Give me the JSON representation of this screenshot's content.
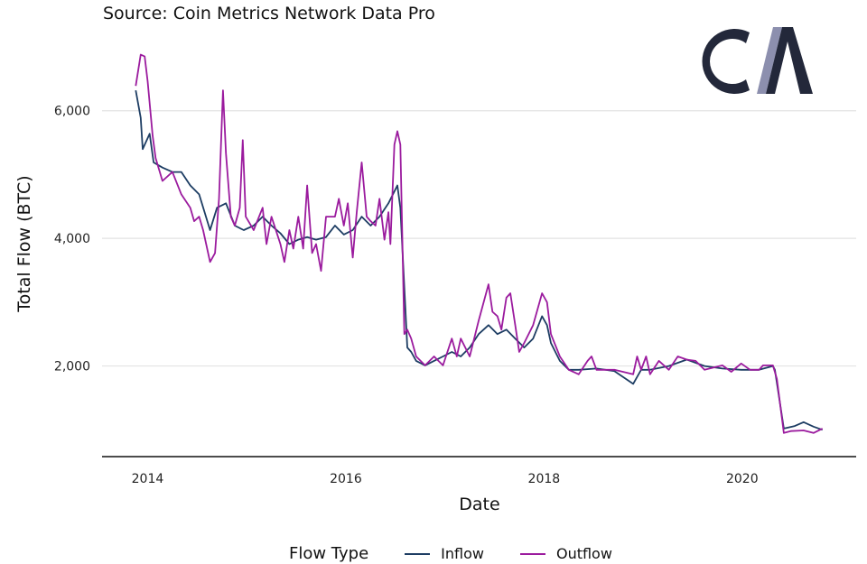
{
  "chart_data": {
    "type": "line",
    "subtitle": "Source: Coin Metrics Network Data Pro",
    "logo_text": "CM",
    "xlabel": "Date",
    "ylabel": "Total Flow (BTC)",
    "xlim": [
      2013.54,
      2021.15
    ],
    "ylim": [
      580,
      7170
    ],
    "x_ticks": [
      2014,
      2016,
      2018,
      2020
    ],
    "x_tick_labels": [
      "2014",
      "2016",
      "2018",
      "2020"
    ],
    "y_ticks": [
      2000,
      4000,
      6000
    ],
    "y_tick_labels": [
      "2,000",
      "4,000",
      "6,000"
    ],
    "grid": "horizontal",
    "legend": {
      "title": "Flow Type",
      "position": "bottom"
    },
    "series": [
      {
        "name": "Inflow",
        "color": "#1d3d63",
        "x": [
          2013.88,
          2013.93,
          2013.95,
          2014.02,
          2014.06,
          2014.15,
          2014.25,
          2014.34,
          2014.43,
          2014.52,
          2014.63,
          2014.7,
          2014.79,
          2014.88,
          2014.97,
          2015.07,
          2015.16,
          2015.25,
          2015.34,
          2015.43,
          2015.52,
          2015.61,
          2015.7,
          2015.8,
          2015.89,
          2015.98,
          2016.07,
          2016.16,
          2016.25,
          2016.34,
          2016.43,
          2016.52,
          2016.55,
          2016.62,
          2016.66,
          2016.71,
          2016.8,
          2016.89,
          2016.98,
          2017.07,
          2017.16,
          2017.25,
          2017.34,
          2017.44,
          2017.53,
          2017.62,
          2017.71,
          2017.8,
          2017.89,
          2017.98,
          2018.03,
          2018.07,
          2018.16,
          2018.25,
          2018.35,
          2018.53,
          2018.71,
          2018.9,
          2018.98,
          2019.07,
          2019.26,
          2019.44,
          2019.62,
          2019.8,
          2019.99,
          2020.17,
          2020.31,
          2020.33,
          2020.42,
          2020.53,
          2020.62,
          2020.72,
          2020.81
        ],
        "y": [
          6320,
          5890,
          5400,
          5640,
          5190,
          5110,
          5040,
          5040,
          4830,
          4690,
          4130,
          4480,
          4550,
          4200,
          4130,
          4200,
          4340,
          4200,
          4080,
          3910,
          3980,
          4020,
          3980,
          4020,
          4200,
          4060,
          4130,
          4340,
          4200,
          4340,
          4550,
          4830,
          4480,
          2290,
          2220,
          2080,
          2010,
          2080,
          2150,
          2220,
          2150,
          2290,
          2500,
          2640,
          2500,
          2570,
          2430,
          2290,
          2430,
          2780,
          2640,
          2360,
          2080,
          1940,
          1940,
          1960,
          1920,
          1720,
          1940,
          1940,
          2000,
          2100,
          2000,
          1960,
          1940,
          1940,
          2000,
          1940,
          1020,
          1060,
          1120,
          1050,
          1000
        ]
      },
      {
        "name": "Outflow",
        "color": "#9b1b9e",
        "x": [
          2013.88,
          2013.93,
          2013.97,
          2014.0,
          2014.05,
          2014.08,
          2014.15,
          2014.25,
          2014.34,
          2014.43,
          2014.47,
          2014.52,
          2014.56,
          2014.63,
          2014.68,
          2014.72,
          2014.76,
          2014.79,
          2014.84,
          2014.88,
          2014.93,
          2014.96,
          2014.99,
          2015.07,
          2015.16,
          2015.2,
          2015.25,
          2015.34,
          2015.38,
          2015.43,
          2015.47,
          2015.52,
          2015.57,
          2015.61,
          2015.66,
          2015.7,
          2015.75,
          2015.8,
          2015.89,
          2015.93,
          2015.98,
          2016.02,
          2016.07,
          2016.11,
          2016.16,
          2016.21,
          2016.25,
          2016.3,
          2016.34,
          2016.39,
          2016.43,
          2016.45,
          2016.49,
          2016.52,
          2016.55,
          2016.59,
          2016.62,
          2016.66,
          2016.71,
          2016.8,
          2016.89,
          2016.98,
          2017.07,
          2017.12,
          2017.16,
          2017.25,
          2017.34,
          2017.44,
          2017.48,
          2017.53,
          2017.57,
          2017.62,
          2017.66,
          2017.71,
          2017.75,
          2017.8,
          2017.89,
          2017.98,
          2018.03,
          2018.07,
          2018.16,
          2018.25,
          2018.35,
          2018.44,
          2018.48,
          2018.53,
          2018.71,
          2018.9,
          2018.94,
          2018.98,
          2019.03,
          2019.07,
          2019.16,
          2019.26,
          2019.35,
          2019.44,
          2019.53,
          2019.62,
          2019.8,
          2019.89,
          2019.99,
          2020.08,
          2020.17,
          2020.21,
          2020.31,
          2020.35,
          2020.42,
          2020.49,
          2020.62,
          2020.72,
          2020.81
        ],
        "y": [
          6390,
          6880,
          6850,
          6460,
          5610,
          5260,
          4900,
          5040,
          4690,
          4480,
          4270,
          4340,
          4130,
          3630,
          3770,
          4620,
          6320,
          5330,
          4340,
          4200,
          4480,
          5540,
          4340,
          4130,
          4480,
          3910,
          4340,
          3910,
          3630,
          4130,
          3840,
          4340,
          3840,
          4830,
          3770,
          3910,
          3490,
          4340,
          4340,
          4620,
          4200,
          4550,
          3700,
          4410,
          5190,
          4340,
          4270,
          4200,
          4620,
          3980,
          4410,
          3910,
          5470,
          5680,
          5470,
          2500,
          2570,
          2430,
          2150,
          2010,
          2150,
          2010,
          2430,
          2150,
          2430,
          2150,
          2710,
          3280,
          2850,
          2780,
          2570,
          3070,
          3140,
          2640,
          2220,
          2360,
          2640,
          3140,
          3000,
          2500,
          2150,
          1940,
          1870,
          2080,
          2150,
          1940,
          1940,
          1870,
          2150,
          1940,
          2150,
          1870,
          2080,
          1940,
          2150,
          2100,
          2080,
          1940,
          2010,
          1910,
          2040,
          1940,
          1940,
          2010,
          2010,
          1800,
          950,
          980,
          990,
          950,
          1020
        ]
      }
    ]
  }
}
